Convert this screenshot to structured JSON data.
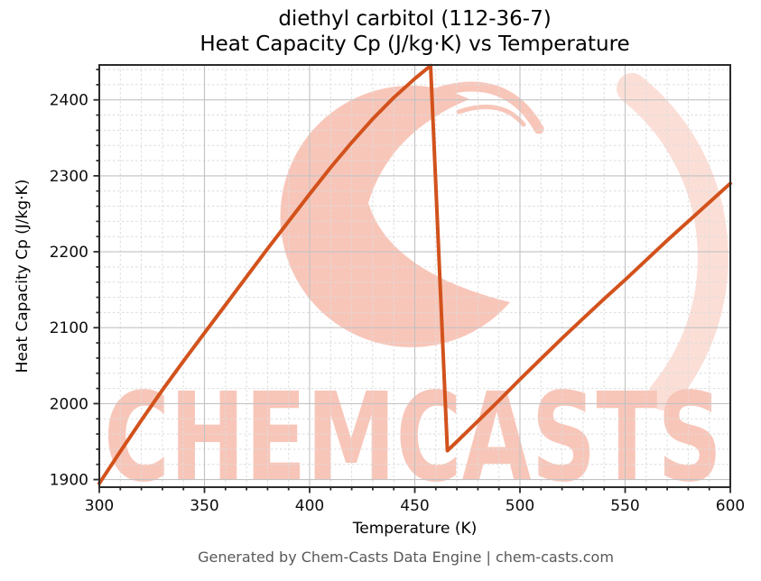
{
  "figure": {
    "title_line1": "diethyl carbitol (112-36-7)",
    "title_line2": "Heat Capacity Cp (J/kg·K) vs Temperature",
    "footer": "Generated by Chem-Casts Data Engine | chem-casts.com",
    "watermark_text": "CHEMCASTS",
    "watermark_logo": "chemcasts-c-swoosh"
  },
  "chart_data": {
    "type": "line",
    "title": "diethyl carbitol (112-36-7)",
    "subtitle": "Heat Capacity Cp (J/kg·K) vs Temperature",
    "xlabel": "Temperature (K)",
    "ylabel": "Heat Capacity Cp (J/kg·K)",
    "xlim": [
      300,
      600
    ],
    "ylim": [
      1890,
      2446
    ],
    "x_major_ticks": [
      300,
      350,
      400,
      450,
      500,
      550,
      600
    ],
    "y_major_ticks": [
      1900,
      2000,
      2100,
      2200,
      2300,
      2400
    ],
    "x_minor_step": 10,
    "y_minor_step": 20,
    "grid": true,
    "legend_visible": false,
    "series": [
      {
        "name": "Heat Capacity Cp",
        "color": "#d2521c",
        "line_width": 4,
        "points": [
          [
            300,
            1895
          ],
          [
            310,
            1937
          ],
          [
            320,
            1978
          ],
          [
            330,
            2018
          ],
          [
            340,
            2056
          ],
          [
            350,
            2093
          ],
          [
            360,
            2130
          ],
          [
            370,
            2167
          ],
          [
            380,
            2204
          ],
          [
            390,
            2240
          ],
          [
            400,
            2276
          ],
          [
            410,
            2311
          ],
          [
            420,
            2344
          ],
          [
            430,
            2375
          ],
          [
            440,
            2403
          ],
          [
            450,
            2428
          ],
          [
            457.5,
            2445
          ],
          [
            465.5,
            1938
          ],
          [
            470,
            1950
          ],
          [
            480,
            1977
          ],
          [
            490,
            2004
          ],
          [
            500,
            2032
          ],
          [
            510,
            2059
          ],
          [
            520,
            2086
          ],
          [
            530,
            2112
          ],
          [
            540,
            2138
          ],
          [
            550,
            2163
          ],
          [
            560,
            2189
          ],
          [
            570,
            2215
          ],
          [
            580,
            2240
          ],
          [
            590,
            2265
          ],
          [
            600,
            2290
          ]
        ]
      }
    ],
    "features": {
      "peak": {
        "x": 457.5,
        "y": 2445
      },
      "drop_minimum": {
        "x": 465.5,
        "y": 1938
      }
    }
  },
  "colors": {
    "line": "#d2521c",
    "watermark": "#f8c6b9",
    "watermark_faint": "#fbdfd7",
    "grid_major": "#c2c2c2",
    "grid_minor": "#dcdcdc",
    "spine": "#2b2b2b",
    "tick_label": "#0d0d0d",
    "footer_text": "#595959"
  }
}
